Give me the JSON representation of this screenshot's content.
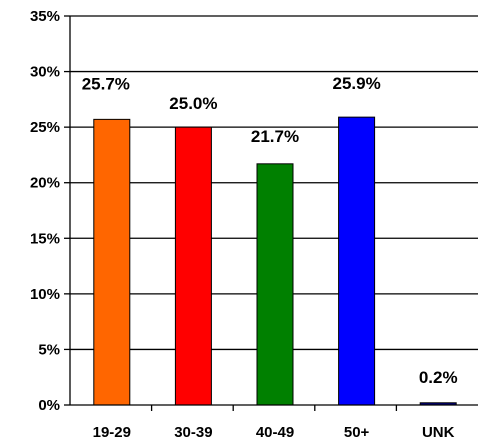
{
  "chart_data": {
    "type": "bar",
    "categories": [
      "19-29",
      "30-39",
      "40-49",
      "50+",
      "UNK"
    ],
    "values": [
      25.7,
      25.0,
      21.7,
      25.9,
      0.2
    ],
    "data_labels": [
      "25.7%",
      "25.0%",
      "21.7%",
      "25.9%",
      "0.2%"
    ],
    "bar_colors": [
      "#ff6600",
      "#ff0000",
      "#008000",
      "#0000ff",
      "#000080"
    ],
    "y_ticks": [
      0,
      5,
      10,
      15,
      20,
      25,
      30,
      35
    ],
    "y_tick_labels": [
      "0%",
      "5%",
      "10%",
      "15%",
      "20%",
      "25%",
      "30%",
      "35%"
    ],
    "ylim": [
      0,
      35
    ],
    "title": "",
    "xlabel": "",
    "ylabel": "",
    "grid": true,
    "legend": "none"
  }
}
